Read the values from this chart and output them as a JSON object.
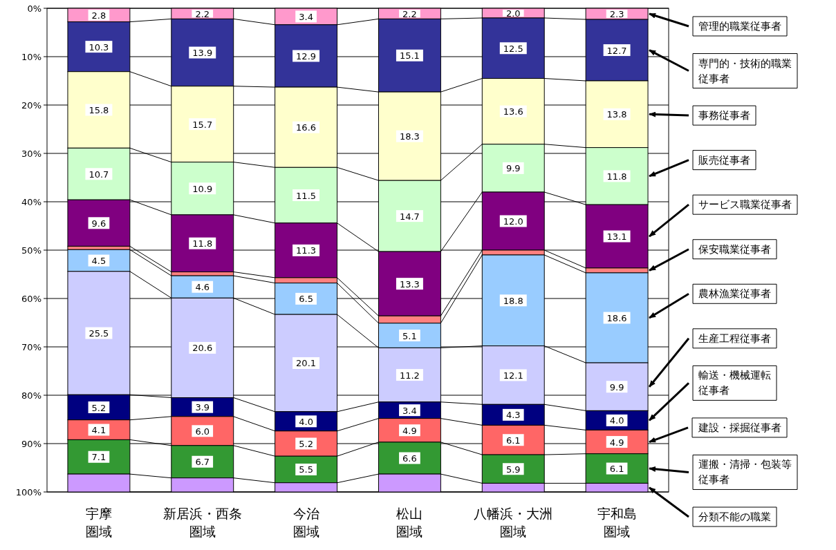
{
  "chart_data": {
    "type": "bar",
    "stacked": true,
    "categories": [
      "宇摩圏域",
      "新居浜・西条圏域",
      "今治圏域",
      "松山圏域",
      "八幡浜・大洲圏域",
      "宇和島圏域"
    ],
    "ylim": [
      100,
      0
    ],
    "yticks": [
      {
        "value": 0,
        "label": "0%"
      },
      {
        "value": 10,
        "label": "10%"
      },
      {
        "value": 20,
        "label": "20%"
      },
      {
        "value": 30,
        "label": "30%"
      },
      {
        "value": 40,
        "label": "40%"
      },
      {
        "value": 50,
        "label": "50%"
      },
      {
        "value": 60,
        "label": "60%"
      },
      {
        "value": 70,
        "label": "70%"
      },
      {
        "value": 80,
        "label": "80%"
      },
      {
        "value": 90,
        "label": "90%"
      },
      {
        "value": 100,
        "label": "100%"
      }
    ],
    "grid": "y",
    "legend": "right",
    "series": [
      {
        "name": "管理的職業従事者",
        "color": "#ff99cc",
        "values": [
          2.8,
          2.2,
          3.4,
          2.2,
          2.0,
          2.3
        ],
        "value_labels": [
          "2.8",
          "2.2",
          "3.4",
          "2.2",
          "2.0",
          "2.3"
        ]
      },
      {
        "name": "専門的・技術的職業従事者",
        "color": "#333399",
        "values": [
          10.3,
          13.9,
          12.9,
          15.1,
          12.5,
          12.7
        ],
        "value_labels": [
          "10.3",
          "13.9",
          "12.9",
          "15.1",
          "12.5",
          "12.7"
        ]
      },
      {
        "name": "事務従事者",
        "color": "#ffffcc",
        "values": [
          15.8,
          15.7,
          16.6,
          18.3,
          13.6,
          13.8
        ],
        "value_labels": [
          "15.8",
          "15.7",
          "16.6",
          "18.3",
          "13.6",
          "13.8"
        ]
      },
      {
        "name": "販売従事者",
        "color": "#ccffcc",
        "values": [
          10.7,
          10.9,
          11.5,
          14.7,
          9.9,
          11.8
        ],
        "value_labels": [
          "10.7",
          "10.9",
          "11.5",
          "14.7",
          "9.9",
          "11.8"
        ]
      },
      {
        "name": "サービス職業従事者",
        "color": "#800080",
        "values": [
          9.6,
          11.8,
          11.3,
          13.3,
          12.0,
          13.1
        ],
        "value_labels": [
          "9.6",
          "11.8",
          "11.3",
          "13.3",
          "12.0",
          "13.1"
        ]
      },
      {
        "name": "保安職業従事者",
        "color": "#ff8080",
        "values": [
          0.7,
          0.8,
          1.1,
          1.5,
          1.0,
          1.0
        ],
        "value_labels": [
          null,
          null,
          null,
          null,
          null,
          null
        ]
      },
      {
        "name": "農林漁業従事者",
        "color": "#99ccff",
        "values": [
          4.5,
          4.6,
          6.5,
          5.1,
          18.8,
          18.6
        ],
        "value_labels": [
          "4.5",
          "4.6",
          "6.5",
          "5.1",
          "18.8",
          "18.6"
        ]
      },
      {
        "name": "生産工程従事者",
        "color": "#ccccff",
        "values": [
          25.5,
          20.6,
          20.1,
          11.2,
          12.1,
          9.9
        ],
        "value_labels": [
          "25.5",
          "20.6",
          "20.1",
          "11.2",
          "12.1",
          "9.9"
        ]
      },
      {
        "name": "輸送・機械運転従事者",
        "color": "#000080",
        "values": [
          5.2,
          3.9,
          4.0,
          3.4,
          4.3,
          4.0
        ],
        "value_labels": [
          "5.2",
          "3.9",
          "4.0",
          "3.4",
          "4.3",
          "4.0"
        ]
      },
      {
        "name": "建設・採掘従事者",
        "color": "#ff6666",
        "values": [
          4.1,
          6.0,
          5.2,
          4.9,
          6.1,
          4.9
        ],
        "value_labels": [
          "4.1",
          "6.0",
          "5.2",
          "4.9",
          "6.1",
          "4.9"
        ]
      },
      {
        "name": "運搬・清掃・包装等従事者",
        "color": "#339933",
        "values": [
          7.1,
          6.7,
          5.5,
          6.6,
          5.9,
          6.1
        ],
        "value_labels": [
          "7.1",
          "6.7",
          "5.5",
          "6.6",
          "5.9",
          "6.1"
        ]
      },
      {
        "name": "分類不能の職業",
        "color": "#cc99ff",
        "values": [
          3.7,
          2.9,
          1.9,
          3.7,
          1.8,
          1.8
        ],
        "value_labels": [
          null,
          null,
          null,
          null,
          null,
          null
        ]
      }
    ]
  }
}
